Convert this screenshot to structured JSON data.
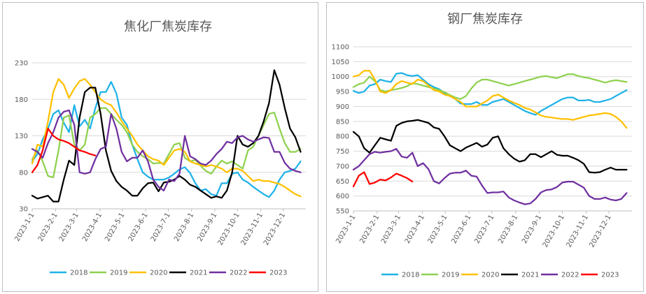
{
  "colors": {
    "2018": "#1FB2E8",
    "2019": "#8FD14F",
    "2020": "#FFC000",
    "2021": "#000000",
    "2022": "#7030A0",
    "2023": "#FF0000",
    "grid": "#D9D9D9",
    "axis": "#BFBFBF"
  },
  "chart_data": [
    {
      "type": "line",
      "title": "焦化厂焦炭库存",
      "ylim": [
        30,
        230
      ],
      "yticks": [
        30,
        80,
        130,
        180,
        230
      ],
      "xlim": [
        0,
        52
      ],
      "xticks": [
        {
          "pos": 0,
          "label": "2023-1-1"
        },
        {
          "pos": 4.43,
          "label": "2023-2-1"
        },
        {
          "pos": 8.43,
          "label": "2023-3-1"
        },
        {
          "pos": 12.86,
          "label": "2023-4-1"
        },
        {
          "pos": 17.14,
          "label": "2023-5-1"
        },
        {
          "pos": 21.57,
          "label": "2023-6-1"
        },
        {
          "pos": 25.86,
          "label": "2023-7-1"
        },
        {
          "pos": 30.29,
          "label": "2023-8-1"
        },
        {
          "pos": 34.71,
          "label": "2023-9-1"
        },
        {
          "pos": 39.0,
          "label": "2023-10-1"
        },
        {
          "pos": 43.43,
          "label": "2023-11-1"
        },
        {
          "pos": 47.71,
          "label": "2023-12-1"
        }
      ],
      "legend": [
        "2018",
        "2019",
        "2020",
        "2021",
        "2022",
        "2023"
      ],
      "series": [
        {
          "name": "2018",
          "values": [
            95,
            105,
            125,
            140,
            160,
            165,
            148,
            135,
            172,
            143,
            152,
            140,
            168,
            190,
            190,
            204,
            188,
            155,
            145,
            118,
            98,
            80,
            74,
            70,
            70,
            70,
            73,
            78,
            84,
            87,
            79,
            65,
            55,
            57,
            50,
            48,
            65,
            65,
            78,
            80,
            70,
            66,
            60,
            55,
            50,
            46,
            55,
            70,
            80,
            82,
            85,
            95
          ]
        },
        {
          "name": "2019",
          "values": [
            98,
            110,
            95,
            75,
            73,
            110,
            155,
            158,
            118,
            110,
            118,
            155,
            160,
            168,
            168,
            160,
            152,
            145,
            135,
            118,
            108,
            102,
            98,
            92,
            93,
            92,
            105,
            118,
            120,
            100,
            95,
            97,
            89,
            82,
            78,
            88,
            96,
            92,
            95,
            90,
            85,
            110,
            115,
            130,
            145,
            160,
            162,
            140,
            120,
            108,
            108,
            112
          ]
        },
        {
          "name": "2020",
          "values": [
            92,
            118,
            115,
            150,
            190,
            208,
            200,
            182,
            195,
            205,
            208,
            200,
            190,
            180,
            175,
            172,
            162,
            150,
            140,
            130,
            118,
            110,
            102,
            98,
            96,
            90,
            100,
            110,
            112,
            108,
            95,
            92,
            90,
            88,
            90,
            88,
            85,
            80,
            85,
            85,
            82,
            75,
            68,
            70,
            68,
            68,
            66,
            64,
            60,
            55,
            50,
            47
          ]
        },
        {
          "name": "2021",
          "values": [
            48,
            44,
            46,
            48,
            40,
            40,
            70,
            96,
            90,
            155,
            190,
            196,
            196,
            160,
            110,
            82,
            68,
            60,
            55,
            48,
            48,
            58,
            65,
            66,
            54,
            66,
            67,
            70,
            75,
            70,
            63,
            60,
            55,
            50,
            45,
            47,
            45,
            55,
            80,
            130,
            118,
            115,
            120,
            130,
            150,
            175,
            220,
            200,
            168,
            140,
            128,
            108
          ]
        },
        {
          "name": "2022",
          "values": [
            112,
            108,
            100,
            120,
            135,
            155,
            163,
            165,
            145,
            80,
            78,
            80,
            98,
            112,
            115,
            160,
            140,
            108,
            95,
            100,
            100,
            110,
            95,
            70,
            60,
            55,
            70,
            68,
            78,
            130,
            102,
            98,
            92,
            90,
            96,
            105,
            112,
            122,
            120,
            128,
            130,
            125,
            122,
            125,
            128,
            127,
            108,
            108,
            93,
            85,
            82,
            80
          ]
        },
        {
          "name": "2023",
          "values": [
            80,
            90,
            110,
            140,
            130,
            125,
            123,
            120,
            115,
            110,
            108,
            105,
            103
          ]
        }
      ]
    },
    {
      "type": "line",
      "title": "钢厂焦炭库存",
      "ylim": [
        550,
        1100
      ],
      "yticks": [
        550,
        600,
        650,
        700,
        750,
        800,
        850,
        900,
        950,
        1000,
        1050,
        1100
      ],
      "xlim": [
        0,
        52
      ],
      "xticks": [
        {
          "pos": 0,
          "label": "2023-1-1"
        },
        {
          "pos": 4.43,
          "label": "2023-2-1"
        },
        {
          "pos": 8.43,
          "label": "2023-3-1"
        },
        {
          "pos": 12.86,
          "label": "2023-4-1"
        },
        {
          "pos": 17.14,
          "label": "2023-5-1"
        },
        {
          "pos": 21.57,
          "label": "2023-6-1"
        },
        {
          "pos": 25.86,
          "label": "2023-7-1"
        },
        {
          "pos": 30.29,
          "label": "2023-8-1"
        },
        {
          "pos": 34.71,
          "label": "2023-9-1"
        },
        {
          "pos": 39.0,
          "label": "2023-10-1"
        },
        {
          "pos": 43.43,
          "label": "2023-11-1"
        },
        {
          "pos": 47.71,
          "label": "2023-12-1"
        }
      ],
      "legend": [
        "2018",
        "2019",
        "2020",
        "2021",
        "2022",
        "2023"
      ],
      "series": [
        {
          "name": "2018",
          "values": [
            952,
            945,
            950,
            970,
            975,
            990,
            985,
            982,
            1010,
            1012,
            1005,
            1002,
            1005,
            990,
            975,
            965,
            958,
            945,
            935,
            925,
            910,
            908,
            908,
            915,
            905,
            905,
            915,
            920,
            925,
            915,
            905,
            895,
            885,
            878,
            872,
            885,
            895,
            905,
            915,
            925,
            930,
            930,
            920,
            920,
            922,
            915,
            915,
            920,
            925,
            935,
            945,
            955
          ]
        },
        {
          "name": "2019",
          "values": [
            965,
            975,
            980,
            1000,
            985,
            955,
            950,
            955,
            958,
            962,
            968,
            978,
            975,
            970,
            965,
            960,
            955,
            948,
            938,
            930,
            925,
            935,
            960,
            980,
            990,
            990,
            985,
            980,
            975,
            970,
            975,
            980,
            985,
            990,
            995,
            1000,
            1002,
            998,
            995,
            1002,
            1008,
            1008,
            1002,
            998,
            995,
            990,
            985,
            980,
            985,
            988,
            985,
            982
          ]
        },
        {
          "name": "2020",
          "values": [
            1000,
            1005,
            1020,
            1020,
            990,
            950,
            945,
            955,
            975,
            985,
            980,
            975,
            990,
            985,
            970,
            955,
            950,
            940,
            935,
            925,
            915,
            900,
            900,
            900,
            910,
            920,
            935,
            940,
            930,
            920,
            912,
            905,
            895,
            890,
            880,
            870,
            865,
            863,
            860,
            858,
            858,
            855,
            860,
            865,
            870,
            872,
            875,
            878,
            875,
            865,
            850,
            828
          ]
        },
        {
          "name": "2021",
          "values": [
            815,
            800,
            760,
            745,
            770,
            795,
            790,
            785,
            835,
            845,
            850,
            852,
            855,
            850,
            845,
            830,
            825,
            800,
            770,
            760,
            750,
            762,
            770,
            778,
            765,
            772,
            795,
            800,
            760,
            740,
            725,
            715,
            720,
            740,
            740,
            730,
            740,
            750,
            738,
            735,
            735,
            728,
            720,
            708,
            680,
            678,
            680,
            688,
            695,
            688,
            688,
            688
          ]
        },
        {
          "name": "2022",
          "values": [
            688,
            700,
            720,
            740,
            748,
            745,
            748,
            750,
            758,
            732,
            728,
            745,
            700,
            710,
            690,
            650,
            642,
            660,
            675,
            678,
            678,
            685,
            668,
            665,
            635,
            610,
            612,
            612,
            615,
            595,
            585,
            578,
            572,
            575,
            590,
            612,
            620,
            622,
            630,
            645,
            648,
            648,
            638,
            628,
            600,
            590,
            590,
            595,
            588,
            585,
            590,
            610
          ]
        },
        {
          "name": "2023",
          "values": [
            632,
            668,
            680,
            640,
            645,
            655,
            652,
            662,
            675,
            668,
            660,
            648
          ]
        }
      ]
    }
  ]
}
